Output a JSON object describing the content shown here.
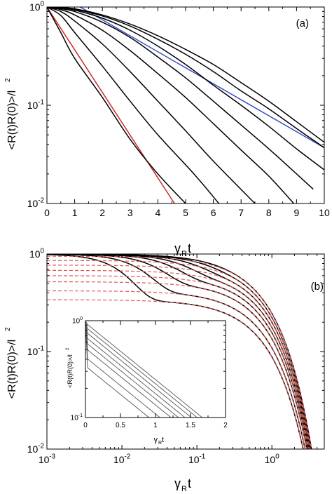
{
  "chart_data": [
    {
      "panel": "(a)",
      "type": "line",
      "xlabel_main": "γ",
      "xlabel_sub": "R",
      "xlabel_tail": "t",
      "ylabel": "<R(t)R(0)>/l",
      "ylabel_sup": "2",
      "xscale": "linear",
      "yscale": "log",
      "xlim": [
        0,
        10
      ],
      "ylim": [
        0.01,
        1
      ],
      "xticks": [
        0,
        1,
        2,
        3,
        4,
        5,
        6,
        7,
        8,
        9,
        10
      ],
      "xtick_labels": [
        "0",
        "1",
        "2",
        "3",
        "4",
        "5",
        "6",
        "7",
        "8",
        "9",
        "10"
      ],
      "yticks": [
        0.01,
        0.1,
        1
      ],
      "ytick_labels": [
        {
          "base": "10",
          "exp": "-2"
        },
        {
          "base": "10",
          "exp": "-1"
        },
        {
          "base": "10",
          "exp": "0"
        }
      ],
      "grid": false,
      "series": [
        {
          "color": "#cc2a2a",
          "x": [
            0,
            4.6
          ],
          "y": [
            1,
            0.01
          ]
        },
        {
          "color": "#3a4fc4",
          "x": [
            1.2,
            10
          ],
          "y": [
            1,
            0.037
          ]
        },
        {
          "color": "#000000",
          "x": [
            0,
            0.5,
            1,
            2,
            3,
            4,
            5
          ],
          "y": [
            1,
            0.55,
            0.3,
            0.12,
            0.045,
            0.02,
            0.01
          ]
        },
        {
          "color": "#000000",
          "x": [
            0,
            0.5,
            1,
            2,
            3,
            4,
            5.3,
            6.2
          ],
          "y": [
            1,
            0.82,
            0.55,
            0.25,
            0.11,
            0.05,
            0.02,
            0.01
          ]
        },
        {
          "color": "#000000",
          "x": [
            0,
            0.5,
            1,
            2,
            3,
            4,
            5,
            6,
            7.5
          ],
          "y": [
            1,
            0.9,
            0.72,
            0.42,
            0.22,
            0.11,
            0.055,
            0.027,
            0.01
          ]
        },
        {
          "color": "#000000",
          "x": [
            0,
            0.5,
            1,
            2,
            3,
            4,
            5,
            6,
            7,
            8,
            8.9
          ],
          "y": [
            1,
            0.94,
            0.83,
            0.58,
            0.36,
            0.21,
            0.12,
            0.065,
            0.035,
            0.019,
            0.01
          ]
        },
        {
          "color": "#000000",
          "x": [
            0,
            0.5,
            1,
            2,
            3,
            4,
            5,
            6,
            7,
            8,
            9,
            9.6
          ],
          "y": [
            1,
            0.96,
            0.9,
            0.7,
            0.49,
            0.31,
            0.19,
            0.11,
            0.063,
            0.036,
            0.02,
            0.014
          ]
        },
        {
          "color": "#000000",
          "x": [
            0,
            0.5,
            1,
            2,
            3,
            4,
            5,
            6,
            7,
            8,
            9,
            10
          ],
          "y": [
            1,
            0.98,
            0.93,
            0.77,
            0.58,
            0.4,
            0.26,
            0.16,
            0.1,
            0.061,
            0.036,
            0.022
          ]
        },
        {
          "color": "#000000",
          "x": [
            0,
            0.5,
            1,
            2,
            3,
            4,
            5,
            6,
            7,
            8,
            9,
            10
          ],
          "y": [
            1,
            0.99,
            0.95,
            0.81,
            0.64,
            0.47,
            0.33,
            0.22,
            0.14,
            0.092,
            0.058,
            0.037
          ]
        },
        {
          "color": "#000000",
          "x": [
            0,
            0.5,
            1,
            2,
            3,
            4,
            5,
            6,
            7,
            8,
            9,
            10
          ],
          "y": [
            1,
            0.99,
            0.96,
            0.83,
            0.67,
            0.51,
            0.37,
            0.26,
            0.17,
            0.11,
            0.068,
            0.042
          ]
        }
      ]
    },
    {
      "panel": "(b)",
      "type": "line",
      "xlabel_main": "γ",
      "xlabel_sub": "R",
      "xlabel_tail": "t",
      "ylabel": "<R(t)R(0)>/l",
      "ylabel_sup": "2",
      "xscale": "log",
      "yscale": "log",
      "xlim": [
        0.001,
        5
      ],
      "ylim": [
        0.01,
        1
      ],
      "xticks": [
        0.001,
        0.01,
        0.1,
        1
      ],
      "xtick_labels": [
        {
          "base": "10",
          "exp": "-3"
        },
        {
          "base": "10",
          "exp": "-2"
        },
        {
          "base": "10",
          "exp": "-1"
        },
        {
          "base": "10",
          "exp": "0"
        }
      ],
      "yticks": [
        0.01,
        0.1,
        1
      ],
      "ytick_labels": [
        {
          "base": "10",
          "exp": "-2"
        },
        {
          "base": "10",
          "exp": "-1"
        },
        {
          "base": "10",
          "exp": "0"
        }
      ],
      "grid": false,
      "plateaus": [
        0.34,
        0.42,
        0.52,
        0.6,
        0.68,
        0.77,
        0.86,
        0.95
      ],
      "knees": [
        0.012,
        0.022,
        0.035,
        0.055,
        0.08,
        0.11,
        0.15,
        0.2
      ],
      "late_decay_rate": 1.35,
      "fit_color": "#e05a50",
      "curve_color": "#000000",
      "inset": {
        "type": "line",
        "xlabel_main": "γ",
        "xlabel_sub": "R",
        "xlabel_tail": "t",
        "ylabel": "<R(t)R(0)>/l",
        "ylabel_sup": "2",
        "xscale": "linear",
        "yscale": "log",
        "xlim": [
          0,
          2
        ],
        "ylim": [
          0.1,
          1
        ],
        "xticks": [
          0,
          0.5,
          1,
          1.5,
          2
        ],
        "xtick_labels": [
          "0",
          "0.5",
          "1",
          "1.5",
          "2"
        ],
        "yticks": [
          0.1,
          1
        ],
        "ytick_labels": [
          {
            "base": "10",
            "exp": "-1"
          },
          {
            "base": "10",
            "exp": "0"
          }
        ],
        "plateaus": [
          0.34,
          0.42,
          0.52,
          0.6,
          0.68,
          0.77,
          0.86,
          0.95
        ],
        "decay_rate": 1.35,
        "line_color": "#555555"
      }
    }
  ]
}
